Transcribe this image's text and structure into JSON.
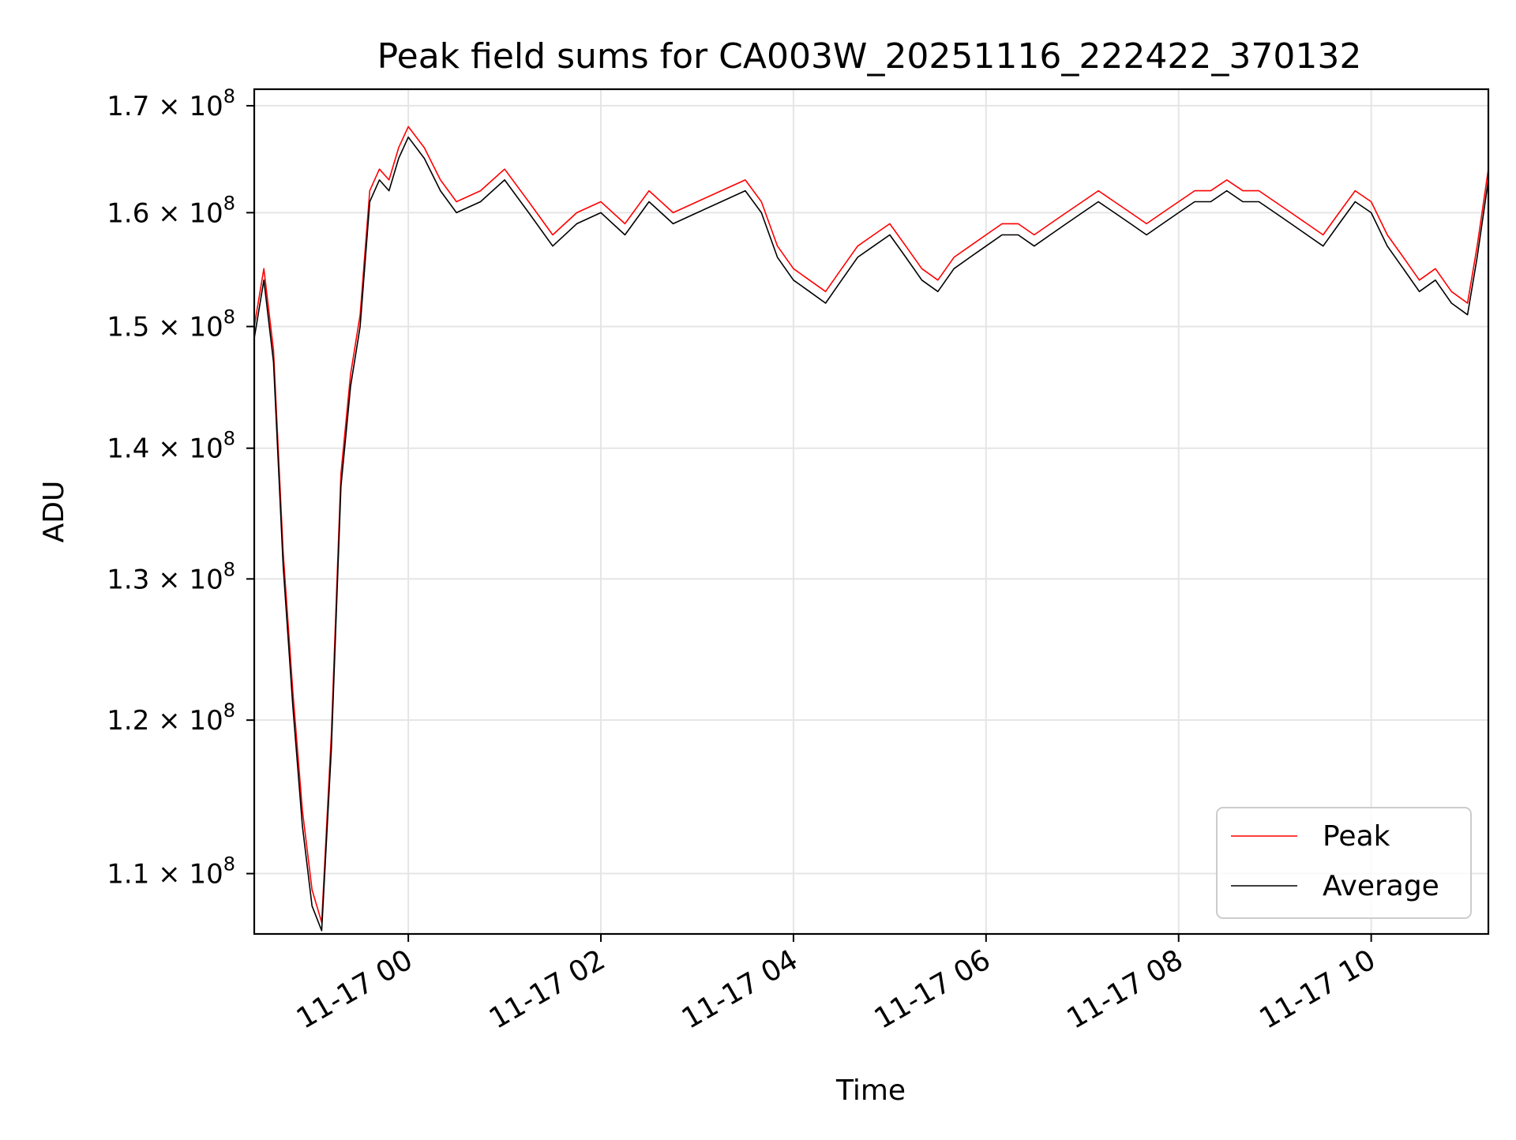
{
  "chart_data": {
    "type": "line",
    "title": "Peak field sums for CA003W_20251116_222422_370132",
    "xlabel": "Time",
    "ylabel": "ADU",
    "y_scale": "log",
    "ylim": [
      106300000,
      171600000
    ],
    "xlim": [
      "2025-11-16 22:24",
      "2025-11-17 11:13"
    ],
    "grid": true,
    "legend_position": "lower-right",
    "x_ticks": [
      {
        "value": "2025-11-17 00:00",
        "label": "11-17 00"
      },
      {
        "value": "2025-11-17 02:00",
        "label": "11-17 02"
      },
      {
        "value": "2025-11-17 04:00",
        "label": "11-17 04"
      },
      {
        "value": "2025-11-17 06:00",
        "label": "11-17 06"
      },
      {
        "value": "2025-11-17 08:00",
        "label": "11-17 08"
      },
      {
        "value": "2025-11-17 10:00",
        "label": "11-17 10"
      }
    ],
    "y_ticks": [
      {
        "value": 110000000,
        "mantissa": "1.1"
      },
      {
        "value": 120000000,
        "mantissa": "1.2"
      },
      {
        "value": 130000000,
        "mantissa": "1.3"
      },
      {
        "value": 140000000,
        "mantissa": "1.4"
      },
      {
        "value": 150000000,
        "mantissa": "1.5"
      },
      {
        "value": 160000000,
        "mantissa": "1.6"
      },
      {
        "value": 170000000,
        "mantissa": "1.7"
      }
    ],
    "y_tick_times": "× 10",
    "y_tick_exponent": "8",
    "series": [
      {
        "name": "Peak",
        "color": "#ff0000",
        "points": [
          [
            "2025-11-16 22:24",
            150000000
          ],
          [
            "2025-11-16 22:30",
            155000000
          ],
          [
            "2025-11-16 22:36",
            148000000
          ],
          [
            "2025-11-16 22:42",
            132000000
          ],
          [
            "2025-11-16 22:48",
            122000000
          ],
          [
            "2025-11-16 22:54",
            114000000
          ],
          [
            "2025-11-16 23:00",
            109000000
          ],
          [
            "2025-11-16 23:06",
            107000000
          ],
          [
            "2025-11-16 23:12",
            119000000
          ],
          [
            "2025-11-16 23:18",
            138000000
          ],
          [
            "2025-11-16 23:24",
            146000000
          ],
          [
            "2025-11-16 23:30",
            151000000
          ],
          [
            "2025-11-16 23:36",
            162000000
          ],
          [
            "2025-11-16 23:42",
            164000000
          ],
          [
            "2025-11-16 23:48",
            163000000
          ],
          [
            "2025-11-16 23:54",
            166000000
          ],
          [
            "2025-11-17 00:00",
            168000000
          ],
          [
            "2025-11-17 00:10",
            166000000
          ],
          [
            "2025-11-17 00:20",
            163000000
          ],
          [
            "2025-11-17 00:30",
            161000000
          ],
          [
            "2025-11-17 00:45",
            162000000
          ],
          [
            "2025-11-17 01:00",
            164000000
          ],
          [
            "2025-11-17 01:15",
            161000000
          ],
          [
            "2025-11-17 01:30",
            158000000
          ],
          [
            "2025-11-17 01:45",
            160000000
          ],
          [
            "2025-11-17 02:00",
            161000000
          ],
          [
            "2025-11-17 02:15",
            159000000
          ],
          [
            "2025-11-17 02:30",
            162000000
          ],
          [
            "2025-11-17 02:45",
            160000000
          ],
          [
            "2025-11-17 03:00",
            161000000
          ],
          [
            "2025-11-17 03:15",
            162000000
          ],
          [
            "2025-11-17 03:30",
            163000000
          ],
          [
            "2025-11-17 03:40",
            161000000
          ],
          [
            "2025-11-17 03:50",
            157000000
          ],
          [
            "2025-11-17 04:00",
            155000000
          ],
          [
            "2025-11-17 04:10",
            154000000
          ],
          [
            "2025-11-17 04:20",
            153000000
          ],
          [
            "2025-11-17 04:30",
            155000000
          ],
          [
            "2025-11-17 04:40",
            157000000
          ],
          [
            "2025-11-17 04:50",
            158000000
          ],
          [
            "2025-11-17 05:00",
            159000000
          ],
          [
            "2025-11-17 05:10",
            157000000
          ],
          [
            "2025-11-17 05:20",
            155000000
          ],
          [
            "2025-11-17 05:30",
            154000000
          ],
          [
            "2025-11-17 05:40",
            156000000
          ],
          [
            "2025-11-17 05:50",
            157000000
          ],
          [
            "2025-11-17 06:00",
            158000000
          ],
          [
            "2025-11-17 06:10",
            159000000
          ],
          [
            "2025-11-17 06:20",
            159000000
          ],
          [
            "2025-11-17 06:30",
            158000000
          ],
          [
            "2025-11-17 06:40",
            159000000
          ],
          [
            "2025-11-17 06:50",
            160000000
          ],
          [
            "2025-11-17 07:00",
            161000000
          ],
          [
            "2025-11-17 07:10",
            162000000
          ],
          [
            "2025-11-17 07:20",
            161000000
          ],
          [
            "2025-11-17 07:30",
            160000000
          ],
          [
            "2025-11-17 07:40",
            159000000
          ],
          [
            "2025-11-17 07:50",
            160000000
          ],
          [
            "2025-11-17 08:00",
            161000000
          ],
          [
            "2025-11-17 08:10",
            162000000
          ],
          [
            "2025-11-17 08:20",
            162000000
          ],
          [
            "2025-11-17 08:30",
            163000000
          ],
          [
            "2025-11-17 08:40",
            162000000
          ],
          [
            "2025-11-17 08:50",
            162000000
          ],
          [
            "2025-11-17 09:00",
            161000000
          ],
          [
            "2025-11-17 09:10",
            160000000
          ],
          [
            "2025-11-17 09:20",
            159000000
          ],
          [
            "2025-11-17 09:30",
            158000000
          ],
          [
            "2025-11-17 09:40",
            160000000
          ],
          [
            "2025-11-17 09:50",
            162000000
          ],
          [
            "2025-11-17 10:00",
            161000000
          ],
          [
            "2025-11-17 10:10",
            158000000
          ],
          [
            "2025-11-17 10:20",
            156000000
          ],
          [
            "2025-11-17 10:30",
            154000000
          ],
          [
            "2025-11-17 10:40",
            155000000
          ],
          [
            "2025-11-17 10:50",
            153000000
          ],
          [
            "2025-11-17 11:00",
            152000000
          ],
          [
            "2025-11-17 11:06",
            157000000
          ],
          [
            "2025-11-17 11:13",
            164000000
          ]
        ]
      },
      {
        "name": "Average",
        "color": "#000000",
        "points": [
          [
            "2025-11-16 22:24",
            149000000
          ],
          [
            "2025-11-16 22:30",
            154000000
          ],
          [
            "2025-11-16 22:36",
            147000000
          ],
          [
            "2025-11-16 22:42",
            131000000
          ],
          [
            "2025-11-16 22:48",
            121000000
          ],
          [
            "2025-11-16 22:54",
            113000000
          ],
          [
            "2025-11-16 23:00",
            108000000
          ],
          [
            "2025-11-16 23:06",
            106500000
          ],
          [
            "2025-11-16 23:12",
            118000000
          ],
          [
            "2025-11-16 23:18",
            137000000
          ],
          [
            "2025-11-16 23:24",
            145000000
          ],
          [
            "2025-11-16 23:30",
            150000000
          ],
          [
            "2025-11-16 23:36",
            161000000
          ],
          [
            "2025-11-16 23:42",
            163000000
          ],
          [
            "2025-11-16 23:48",
            162000000
          ],
          [
            "2025-11-16 23:54",
            165000000
          ],
          [
            "2025-11-17 00:00",
            167000000
          ],
          [
            "2025-11-17 00:10",
            165000000
          ],
          [
            "2025-11-17 00:20",
            162000000
          ],
          [
            "2025-11-17 00:30",
            160000000
          ],
          [
            "2025-11-17 00:45",
            161000000
          ],
          [
            "2025-11-17 01:00",
            163000000
          ],
          [
            "2025-11-17 01:15",
            160000000
          ],
          [
            "2025-11-17 01:30",
            157000000
          ],
          [
            "2025-11-17 01:45",
            159000000
          ],
          [
            "2025-11-17 02:00",
            160000000
          ],
          [
            "2025-11-17 02:15",
            158000000
          ],
          [
            "2025-11-17 02:30",
            161000000
          ],
          [
            "2025-11-17 02:45",
            159000000
          ],
          [
            "2025-11-17 03:00",
            160000000
          ],
          [
            "2025-11-17 03:15",
            161000000
          ],
          [
            "2025-11-17 03:30",
            162000000
          ],
          [
            "2025-11-17 03:40",
            160000000
          ],
          [
            "2025-11-17 03:50",
            156000000
          ],
          [
            "2025-11-17 04:00",
            154000000
          ],
          [
            "2025-11-17 04:10",
            153000000
          ],
          [
            "2025-11-17 04:20",
            152000000
          ],
          [
            "2025-11-17 04:30",
            154000000
          ],
          [
            "2025-11-17 04:40",
            156000000
          ],
          [
            "2025-11-17 04:50",
            157000000
          ],
          [
            "2025-11-17 05:00",
            158000000
          ],
          [
            "2025-11-17 05:10",
            156000000
          ],
          [
            "2025-11-17 05:20",
            154000000
          ],
          [
            "2025-11-17 05:30",
            153000000
          ],
          [
            "2025-11-17 05:40",
            155000000
          ],
          [
            "2025-11-17 05:50",
            156000000
          ],
          [
            "2025-11-17 06:00",
            157000000
          ],
          [
            "2025-11-17 06:10",
            158000000
          ],
          [
            "2025-11-17 06:20",
            158000000
          ],
          [
            "2025-11-17 06:30",
            157000000
          ],
          [
            "2025-11-17 06:40",
            158000000
          ],
          [
            "2025-11-17 06:50",
            159000000
          ],
          [
            "2025-11-17 07:00",
            160000000
          ],
          [
            "2025-11-17 07:10",
            161000000
          ],
          [
            "2025-11-17 07:20",
            160000000
          ],
          [
            "2025-11-17 07:30",
            159000000
          ],
          [
            "2025-11-17 07:40",
            158000000
          ],
          [
            "2025-11-17 07:50",
            159000000
          ],
          [
            "2025-11-17 08:00",
            160000000
          ],
          [
            "2025-11-17 08:10",
            161000000
          ],
          [
            "2025-11-17 08:20",
            161000000
          ],
          [
            "2025-11-17 08:30",
            162000000
          ],
          [
            "2025-11-17 08:40",
            161000000
          ],
          [
            "2025-11-17 08:50",
            161000000
          ],
          [
            "2025-11-17 09:00",
            160000000
          ],
          [
            "2025-11-17 09:10",
            159000000
          ],
          [
            "2025-11-17 09:20",
            158000000
          ],
          [
            "2025-11-17 09:30",
            157000000
          ],
          [
            "2025-11-17 09:40",
            159000000
          ],
          [
            "2025-11-17 09:50",
            161000000
          ],
          [
            "2025-11-17 10:00",
            160000000
          ],
          [
            "2025-11-17 10:10",
            157000000
          ],
          [
            "2025-11-17 10:20",
            155000000
          ],
          [
            "2025-11-17 10:30",
            153000000
          ],
          [
            "2025-11-17 10:40",
            154000000
          ],
          [
            "2025-11-17 10:50",
            152000000
          ],
          [
            "2025-11-17 11:00",
            151000000
          ],
          [
            "2025-11-17 11:06",
            156000000
          ],
          [
            "2025-11-17 11:13",
            163000000
          ]
        ]
      }
    ]
  }
}
